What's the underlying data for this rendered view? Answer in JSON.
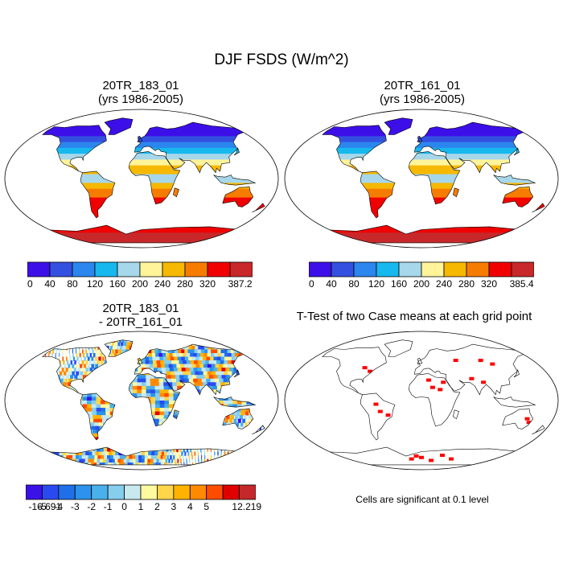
{
  "figure": {
    "title": "DJF FSDS (W/m^2)",
    "note": "Cells are significant at 0.1 level"
  },
  "panels": {
    "case1": {
      "title_line1": "20TR_183_01",
      "title_line2": "(yrs 1986-2005)"
    },
    "case2": {
      "title_line1": "20TR_161_01",
      "title_line2": "(yrs 1986-2005)"
    },
    "diff": {
      "title_line1": "20TR_183_01",
      "title_line2": "- 20TR_161_01"
    },
    "ttest": {
      "title_line1": "T-Test of two Case means at each grid point"
    }
  },
  "colorbars": {
    "case1": {
      "colors": [
        "#3d0fe8",
        "#3450e0",
        "#2b86ee",
        "#17b8ee",
        "#a7d7ea",
        "#fff49a",
        "#f6b800",
        "#f67c00",
        "#f00000",
        "#c8282a"
      ],
      "labels": [
        "0",
        "40",
        "80",
        "120",
        "160",
        "200",
        "240",
        "280",
        "320",
        "387.2"
      ]
    },
    "case2": {
      "colors": [
        "#3d0fe8",
        "#3450e0",
        "#2b86ee",
        "#17b8ee",
        "#a7d7ea",
        "#fff49a",
        "#f6b800",
        "#f67c00",
        "#f00000",
        "#c8282a"
      ],
      "labels": [
        "0",
        "40",
        "80",
        "120",
        "160",
        "200",
        "240",
        "280",
        "320",
        "385.4"
      ]
    },
    "diff": {
      "colors": [
        "#3a12e6",
        "#2a4af0",
        "#1f6fe8",
        "#2c92ec",
        "#4ab0ec",
        "#86cdee",
        "#c8e9ee",
        "#fff9a0",
        "#ffd54a",
        "#ffb300",
        "#ff8a00",
        "#ff4c00",
        "#e00000",
        "#c4282a"
      ],
      "labels": [
        "-16.691",
        "-5",
        "-4",
        "-3",
        "-2",
        "-1",
        "0",
        "1",
        "2",
        "3",
        "4",
        "5",
        "12.219"
      ]
    }
  },
  "chart_data": [
    {
      "type": "heatmap",
      "title": "20TR_183_01 (yrs 1986-2005)",
      "levels": [
        0,
        40,
        80,
        120,
        160,
        200,
        240,
        280,
        320
      ],
      "max": 387.2
    },
    {
      "type": "heatmap",
      "title": "20TR_161_01 (yrs 1986-2005)",
      "levels": [
        0,
        40,
        80,
        120,
        160,
        200,
        240,
        280,
        320
      ],
      "max": 385.4
    },
    {
      "type": "heatmap",
      "title": "20TR_183_01 - 20TR_161_01",
      "levels": [
        -5,
        -4,
        -3,
        -2,
        -1,
        0,
        1,
        2,
        3,
        4,
        5
      ],
      "min": -16.691,
      "max": 12.219
    },
    {
      "type": "heatmap",
      "title": "T-Test of two Case means at each grid point",
      "significance_level": 0.1
    }
  ]
}
